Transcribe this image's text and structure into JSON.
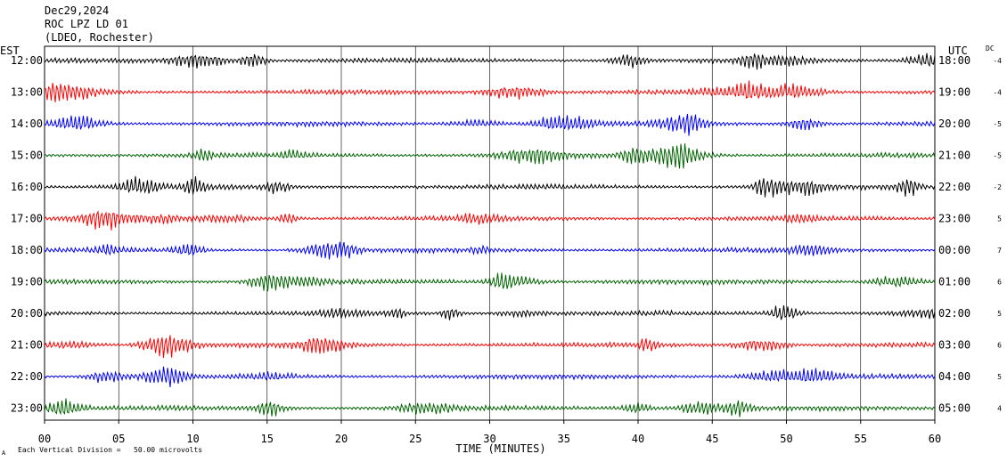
{
  "header": {
    "date": "Dec29,2024",
    "station": "ROC LPZ LD 01",
    "network": "(LDEO, Rochester)"
  },
  "left_tz": "EST",
  "right_tz": "UTC",
  "dc_label": "DC",
  "footer": {
    "scale_note": "Each Vertical Division =   50.00 microvolts",
    "corner_mark": "A"
  },
  "chart_data": {
    "type": "line",
    "title": "",
    "xlabel": "TIME (MINUTES)",
    "ylabel": "",
    "xlim": [
      0,
      60
    ],
    "x_ticks": [
      "00",
      "05",
      "10",
      "15",
      "20",
      "25",
      "30",
      "35",
      "40",
      "45",
      "50",
      "55",
      "60"
    ],
    "grid": true,
    "colors": [
      "#000000",
      "#ff0000",
      "#0000ff",
      "#006400"
    ],
    "traces": [
      {
        "est": "12:00",
        "utc": "18:00",
        "dc": "-4"
      },
      {
        "est": "13:00",
        "utc": "19:00",
        "dc": "-4"
      },
      {
        "est": "14:00",
        "utc": "20:00",
        "dc": "-5"
      },
      {
        "est": "15:00",
        "utc": "21:00",
        "dc": "-5"
      },
      {
        "est": "16:00",
        "utc": "22:00",
        "dc": "-2"
      },
      {
        "est": "17:00",
        "utc": "23:00",
        "dc": "5"
      },
      {
        "est": "18:00",
        "utc": "00:00",
        "dc": "7"
      },
      {
        "est": "19:00",
        "utc": "01:00",
        "dc": "6"
      },
      {
        "est": "20:00",
        "utc": "02:00",
        "dc": "5"
      },
      {
        "est": "21:00",
        "utc": "03:00",
        "dc": "6"
      },
      {
        "est": "22:00",
        "utc": "04:00",
        "dc": "5"
      },
      {
        "est": "23:00",
        "utc": "05:00",
        "dc": "4"
      }
    ]
  }
}
